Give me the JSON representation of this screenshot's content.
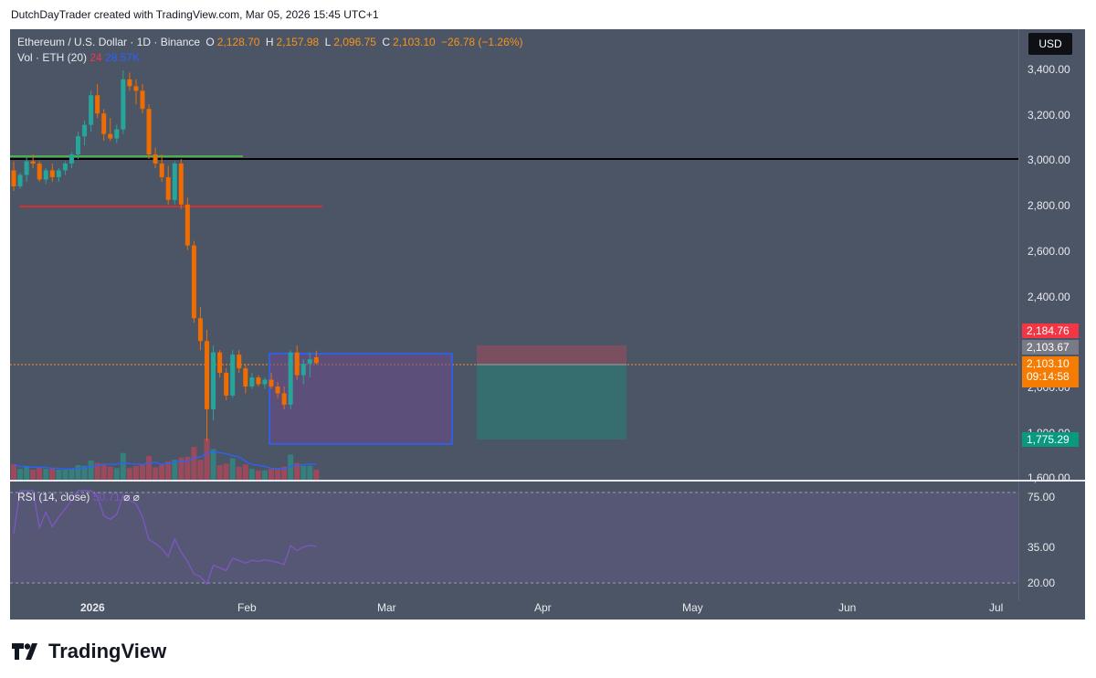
{
  "header": {
    "text": "DutchDayTrader created with TradingView.com, Mar 05, 2026 15:45 UTC+1"
  },
  "legend": {
    "symbol": "Ethereum / U.S. Dollar · 1D · Binance",
    "o_key": "O",
    "o": "2,128.70",
    "h_key": "H",
    "h": "2,157.98",
    "l_key": "L",
    "l": "2,096.75",
    "c_key": "C",
    "c": "2,103.10",
    "change": "−26.78 (−1.26%)"
  },
  "volume_legend": {
    "label": "Vol · ETH (20)",
    "n": "24",
    "value": "28.57K"
  },
  "rsi_legend": {
    "label": "RSI (14, close)",
    "value": "50.71",
    "extra": "⌀  ⌀"
  },
  "currency_button": "USD",
  "price_axis": [
    "3,400.00",
    "3,200.00",
    "3,000.00",
    "2,800.00",
    "2,600.00",
    "2,400.00",
    "2,000.00",
    "1,800.00",
    "1,600.00"
  ],
  "rsi_axis": [
    "75.00",
    "35.00",
    "20.00"
  ],
  "badges": {
    "stop": "2,184.76",
    "entry": "2,103.67",
    "last": "2,103.10",
    "countdown": "09:14:58",
    "target": "1,775.29"
  },
  "time_axis": [
    "2026",
    "Feb",
    "Mar",
    "Apr",
    "May",
    "Jun",
    "Jul"
  ],
  "logo": "TradingView",
  "colors": {
    "up": "#26a69a",
    "down": "#ef6c00",
    "background": "#4c5566",
    "rsi": "#7e57c2"
  },
  "chart_data": {
    "type": "candlestick",
    "title": "Ethereum / U.S. Dollar · 1D · Binance",
    "ohlc_approx": [
      [
        2950,
        2990,
        2860,
        2880
      ],
      [
        2880,
        2940,
        2870,
        2930
      ],
      [
        2930,
        3010,
        2900,
        2990
      ],
      [
        2990,
        3020,
        2960,
        2980
      ],
      [
        2980,
        2990,
        2900,
        2910
      ],
      [
        2910,
        2960,
        2890,
        2950
      ],
      [
        2950,
        2980,
        2900,
        2920
      ],
      [
        2920,
        2960,
        2900,
        2950
      ],
      [
        2950,
        2990,
        2930,
        2980
      ],
      [
        2980,
        3030,
        2960,
        3020
      ],
      [
        3020,
        3120,
        3000,
        3100
      ],
      [
        3100,
        3170,
        3060,
        3150
      ],
      [
        3150,
        3300,
        3120,
        3280
      ],
      [
        3280,
        3330,
        3180,
        3200
      ],
      [
        3200,
        3220,
        3080,
        3110
      ],
      [
        3110,
        3180,
        3080,
        3090
      ],
      [
        3090,
        3150,
        3070,
        3130
      ],
      [
        3130,
        3390,
        3110,
        3350
      ],
      [
        3350,
        3380,
        3300,
        3320
      ],
      [
        3320,
        3350,
        3240,
        3300
      ],
      [
        3300,
        3330,
        3200,
        3220
      ],
      [
        3220,
        3240,
        3000,
        3020
      ],
      [
        3020,
        3050,
        2960,
        2980
      ],
      [
        2980,
        3020,
        2900,
        2920
      ],
      [
        2920,
        2970,
        2800,
        2820
      ],
      [
        2820,
        2990,
        2800,
        2980
      ],
      [
        2980,
        3000,
        2780,
        2800
      ],
      [
        2800,
        2830,
        2600,
        2620
      ],
      [
        2620,
        2640,
        2280,
        2300
      ],
      [
        2300,
        2350,
        2160,
        2200
      ],
      [
        2200,
        2250,
        1760,
        1900
      ],
      [
        1900,
        2180,
        1850,
        2150
      ],
      [
        2150,
        2160,
        2040,
        2060
      ],
      [
        2060,
        2080,
        1940,
        1960
      ],
      [
        1960,
        2160,
        1950,
        2140
      ],
      [
        2140,
        2160,
        2060,
        2080
      ],
      [
        2080,
        2100,
        1970,
        2000
      ],
      [
        2000,
        2060,
        1990,
        2040
      ],
      [
        2040,
        2050,
        2000,
        2010
      ],
      [
        2010,
        2040,
        1990,
        2030
      ],
      [
        2030,
        2060,
        1990,
        2000
      ],
      [
        2000,
        2020,
        1950,
        1970
      ],
      [
        1970,
        2000,
        1900,
        1920
      ],
      [
        1920,
        2160,
        1900,
        2150
      ],
      [
        2150,
        2180,
        2030,
        2050
      ],
      [
        2050,
        2120,
        2010,
        2100
      ],
      [
        2100,
        2150,
        2040,
        2120
      ],
      [
        2128.7,
        2157.98,
        2096.75,
        2103.1
      ]
    ],
    "horizontal_levels": [
      3000,
      2800
    ],
    "rsi_levels": [
      75,
      35,
      20
    ]
  }
}
